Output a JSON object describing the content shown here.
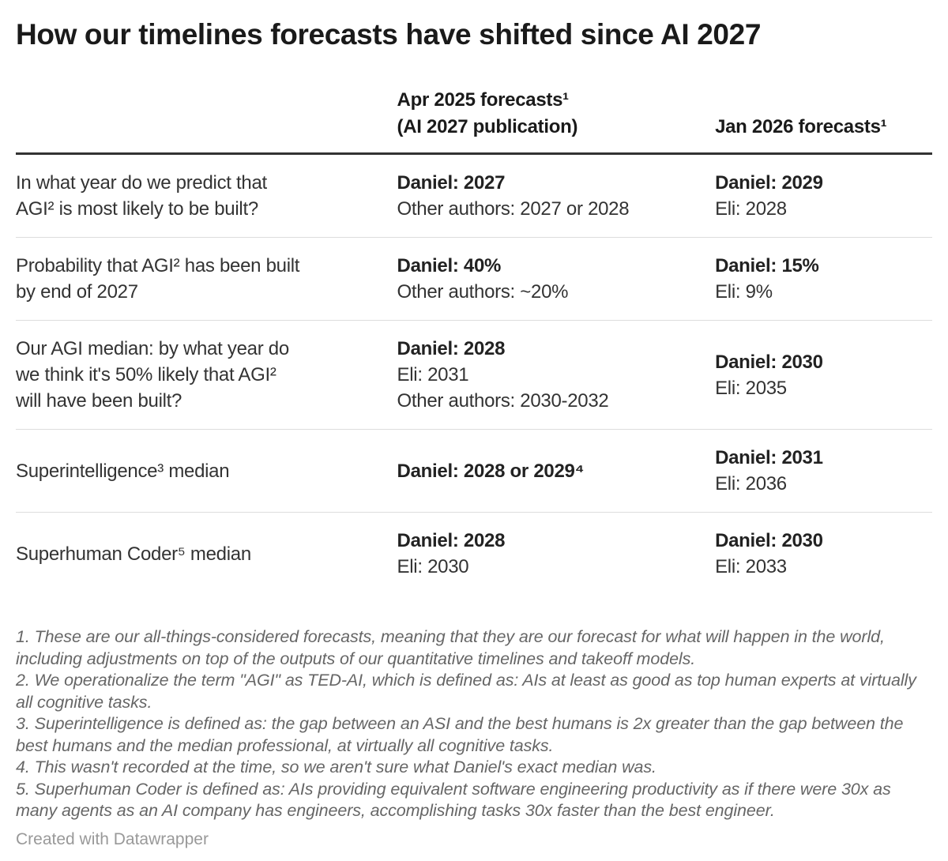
{
  "title": "How our timelines forecasts have shifted since AI 2027",
  "header": {
    "question_column": "",
    "col_apr": "Apr 2025 forecasts¹\n(AI 2027 publication)",
    "col_jan": "Jan 2026 forecasts¹"
  },
  "rows": [
    {
      "question": "In what year do we predict that\nAGI² is most likely to be built?",
      "apr_2025": [
        {
          "text": "Daniel: 2027",
          "bold": true
        },
        {
          "text": "Other authors: 2027 or 2028",
          "bold": false
        }
      ],
      "jan_2026": [
        {
          "text": "Daniel: 2029",
          "bold": true
        },
        {
          "text": "Eli: 2028",
          "bold": false
        }
      ]
    },
    {
      "question": "Probability that AGI² has been built\nby end of 2027",
      "apr_2025": [
        {
          "text": "Daniel: 40%",
          "bold": true
        },
        {
          "text": "Other authors: ~20%",
          "bold": false
        }
      ],
      "jan_2026": [
        {
          "text": "Daniel: 15%",
          "bold": true
        },
        {
          "text": "Eli: 9%",
          "bold": false
        }
      ]
    },
    {
      "question": "Our AGI median: by what year do\nwe think it's 50% likely that AGI²\nwill have been built?",
      "apr_2025": [
        {
          "text": "Daniel: 2028",
          "bold": true
        },
        {
          "text": "Eli: 2031",
          "bold": false
        },
        {
          "text": "Other authors: 2030-2032",
          "bold": false
        }
      ],
      "jan_2026": [
        {
          "text": "Daniel: 2030",
          "bold": true
        },
        {
          "text": "Eli: 2035",
          "bold": false
        }
      ]
    },
    {
      "question": "Superintelligence³ median",
      "apr_2025": [
        {
          "text": "Daniel: 2028 or 2029⁴",
          "bold": true
        }
      ],
      "jan_2026": [
        {
          "text": "Daniel: 2031",
          "bold": true
        },
        {
          "text": "Eli: 2036",
          "bold": false
        }
      ]
    },
    {
      "question": "Superhuman Coder⁵ median",
      "apr_2025": [
        {
          "text": "Daniel: 2028",
          "bold": true
        },
        {
          "text": "Eli: 2030",
          "bold": false
        }
      ],
      "jan_2026": [
        {
          "text": "Daniel: 2030",
          "bold": true
        },
        {
          "text": "Eli: 2033",
          "bold": false
        }
      ]
    }
  ],
  "footnotes": [
    "1. These are our all-things-considered forecasts, meaning that they are our forecast for what will happen in the world, including adjustments on top of the outputs of our quantitative timelines and takeoff models.",
    "2. We operationalize the term \"AGI\" as TED-AI, which is defined as: AIs at least as good as top human experts at virtually all cognitive tasks.",
    "3. Superintelligence is defined as: the gap between an ASI and the best humans is 2x greater than the gap between the best humans and the median professional, at virtually all cognitive tasks.",
    "4. This wasn't recorded at the time, so we aren't sure what Daniel's exact median was.",
    "5. Superhuman Coder is defined as: AIs providing equivalent software engineering productivity as if there were 30x as many agents as an AI company has engineers, accomplishing tasks 30x faster than the best engineer."
  ],
  "attribution": "Created with Datawrapper",
  "colors": {
    "title_color": "#1a1a1a",
    "text_color": "#333333",
    "footnote_color": "#666666",
    "attribution_color": "#999999",
    "header_rule_color": "#333333",
    "row_rule_color": "#dddddd",
    "bg_color": "#ffffff"
  },
  "chart_data": {
    "type": "table",
    "title": "How our timelines forecasts have shifted since AI 2027",
    "columns": [
      "",
      "Apr 2025 forecasts¹ (AI 2027 publication)",
      "Jan 2026 forecasts¹"
    ],
    "rows": [
      [
        "In what year do we predict that AGI² is most likely to be built?",
        "Daniel: 2027 | Other authors: 2027 or 2028",
        "Daniel: 2029 | Eli: 2028"
      ],
      [
        "Probability that AGI² has been built by end of 2027",
        "Daniel: 40% | Other authors: ~20%",
        "Daniel: 15% | Eli: 9%"
      ],
      [
        "Our AGI median: by what year do we think it's 50% likely that AGI² will have been built?",
        "Daniel: 2028 | Eli: 2031 | Other authors: 2030-2032",
        "Daniel: 2030 | Eli: 2035"
      ],
      [
        "Superintelligence³ median",
        "Daniel: 2028 or 2029⁴",
        "Daniel: 2031 | Eli: 2036"
      ],
      [
        "Superhuman Coder⁵ median",
        "Daniel: 2028 | Eli: 2030",
        "Daniel: 2030 | Eli: 2033"
      ]
    ]
  }
}
